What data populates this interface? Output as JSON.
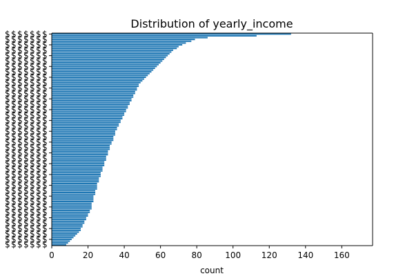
{
  "chart_data": {
    "type": "bar",
    "orientation": "horizontal",
    "title": "Distribution of yearly_income",
    "xlabel": "count",
    "ylabel": "",
    "xlim": [
      0,
      177
    ],
    "xticks": [
      0,
      20,
      40,
      60,
      80,
      100,
      120,
      140,
      160
    ],
    "bar_color": "#1f77b4",
    "grid": false,
    "legend": "none",
    "category_label_text": "$",
    "values": [
      132,
      113,
      86,
      79,
      77,
      74,
      72,
      70,
      69,
      67,
      66,
      65,
      64,
      63,
      62,
      61,
      60,
      59,
      58,
      57,
      56,
      55,
      54,
      53,
      52,
      51,
      50,
      49,
      48,
      48,
      47,
      47,
      46,
      46,
      45,
      45,
      44,
      44,
      43,
      43,
      42,
      42,
      41,
      41,
      40,
      40,
      39,
      39,
      38,
      38,
      37,
      37,
      36,
      36,
      35,
      35,
      35,
      34,
      34,
      34,
      33,
      33,
      32,
      32,
      32,
      31,
      31,
      31,
      30,
      30,
      30,
      29,
      29,
      29,
      28,
      28,
      28,
      27,
      27,
      27,
      26,
      26,
      26,
      25,
      25,
      25,
      25,
      24,
      24,
      24,
      23,
      23,
      23,
      23,
      22,
      22,
      22,
      22,
      21,
      21,
      20,
      20,
      19,
      19,
      18,
      18,
      17,
      17,
      16,
      16,
      15,
      14,
      13,
      12,
      11,
      10,
      9,
      8
    ]
  }
}
